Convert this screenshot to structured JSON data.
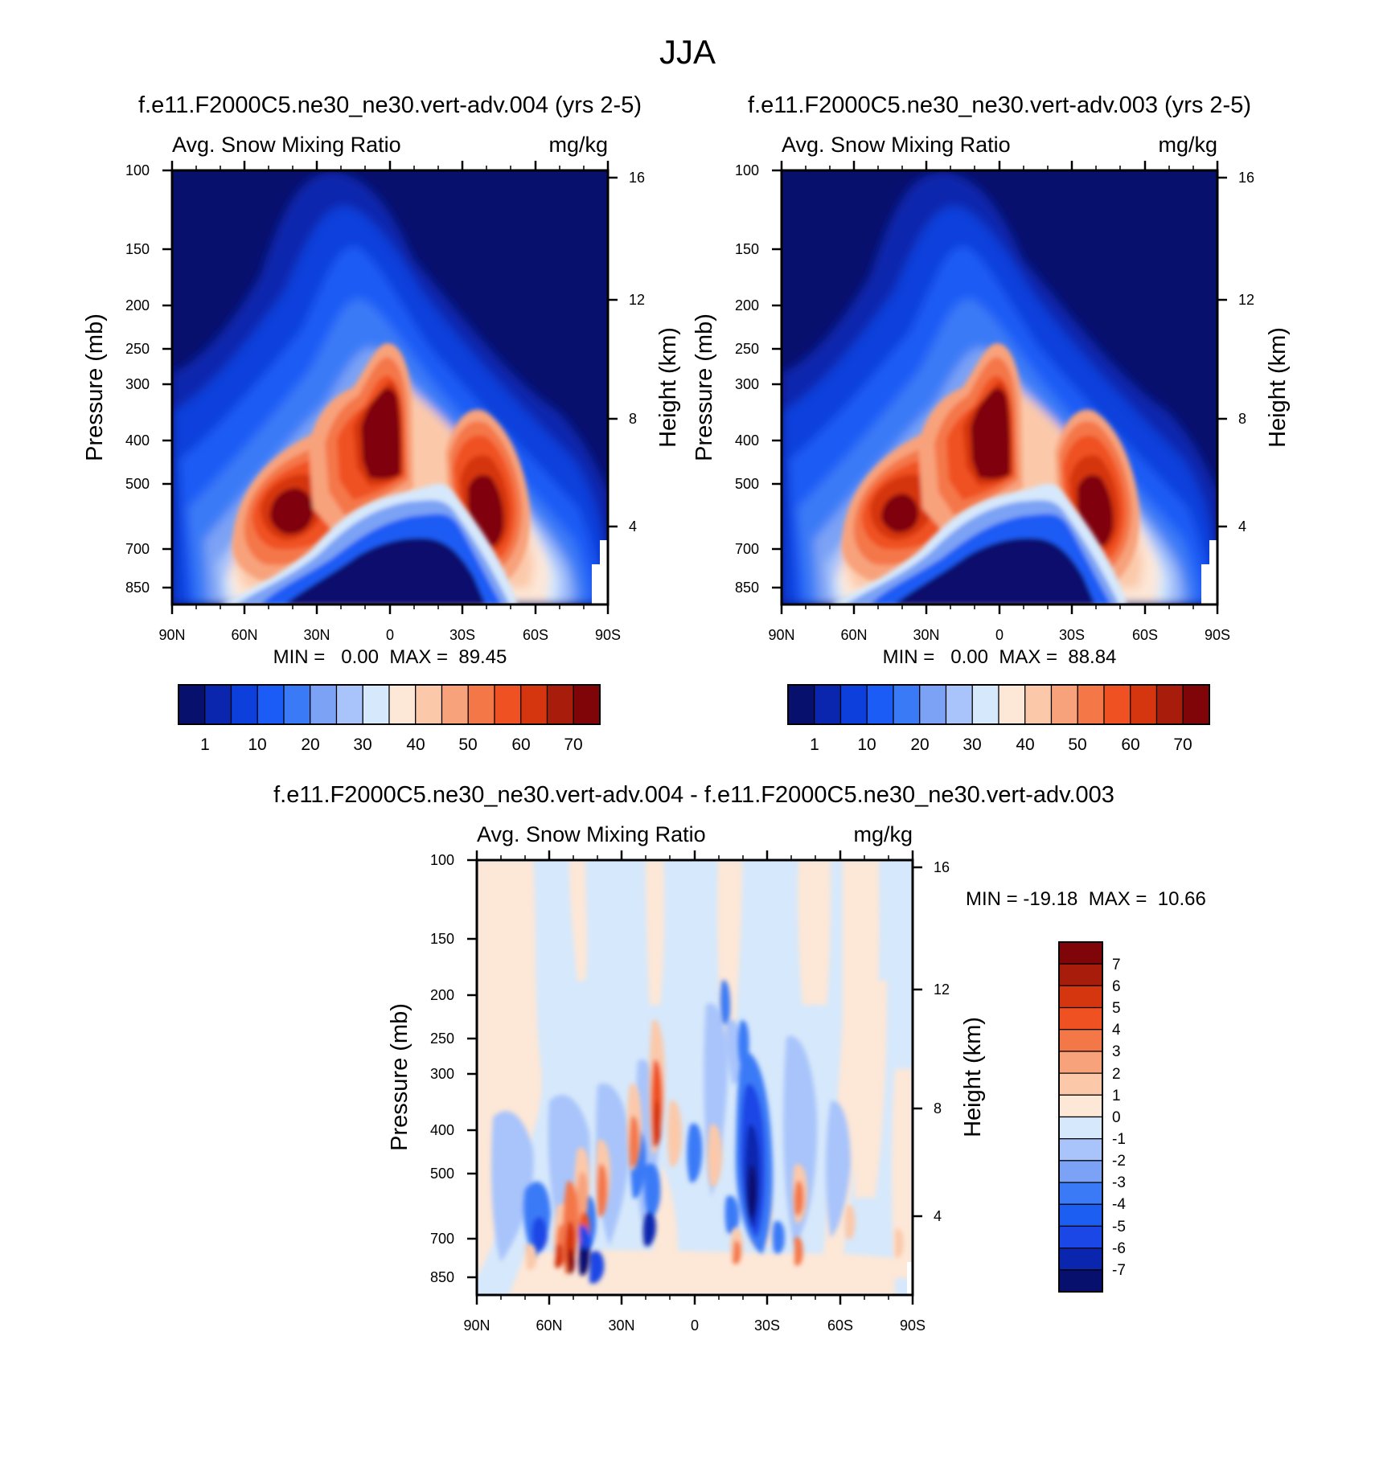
{
  "page": {
    "title": "JJA"
  },
  "colors": {
    "abs_palette": [
      "#08106e",
      "#0a25ae",
      "#0c3fdc",
      "#1a5cf5",
      "#3b7af7",
      "#7ba2f5",
      "#a8c4fb",
      "#d6e8fb",
      "#fde7d7",
      "#fbc9aa",
      "#f8a27c",
      "#f47748",
      "#f05123",
      "#d5350f",
      "#a81c0b",
      "#800509"
    ],
    "diff_palette": [
      "#08106e",
      "#0a25ae",
      "#1a47e6",
      "#1c5ef2",
      "#3b7af7",
      "#7ba2f5",
      "#a8c4fb",
      "#d6e8fb",
      "#fde7d7",
      "#fbc9aa",
      "#f8a27c",
      "#f47748",
      "#f05123",
      "#d5350f",
      "#a81c0b",
      "#800509"
    ]
  },
  "chart_data": [
    {
      "type": "heatmap",
      "title": "f.e11.F2000C5.ne30_ne30.vert-adv.004 (yrs 2-5)",
      "left_label": "Avg. Snow Mixing Ratio",
      "right_label": "mg/kg",
      "ylabel": "Pressure (mb)",
      "y2label": "Height (km)",
      "xticks": [
        "90N",
        "60N",
        "30N",
        "0",
        "30S",
        "60S",
        "90S"
      ],
      "yticks": [
        "100",
        "150",
        "200",
        "250",
        "300",
        "400",
        "500",
        "700",
        "850"
      ],
      "y2ticks": [
        "16",
        "12",
        "8",
        "4"
      ],
      "stats": "MIN =   0.00  MAX =  89.45",
      "colorbar_labels": [
        "1",
        "10",
        "20",
        "30",
        "40",
        "50",
        "60",
        "70"
      ],
      "min": 0.0,
      "max": 89.45
    },
    {
      "type": "heatmap",
      "title": "f.e11.F2000C5.ne30_ne30.vert-adv.003 (yrs 2-5)",
      "left_label": "Avg. Snow Mixing Ratio",
      "right_label": "mg/kg",
      "ylabel": "Pressure (mb)",
      "y2label": "Height (km)",
      "xticks": [
        "90N",
        "60N",
        "30N",
        "0",
        "30S",
        "60S",
        "90S"
      ],
      "yticks": [
        "100",
        "150",
        "200",
        "250",
        "300",
        "400",
        "500",
        "700",
        "850"
      ],
      "y2ticks": [
        "16",
        "12",
        "8",
        "4"
      ],
      "stats": "MIN =   0.00  MAX =  88.84",
      "colorbar_labels": [
        "1",
        "10",
        "20",
        "30",
        "40",
        "50",
        "60",
        "70"
      ],
      "min": 0.0,
      "max": 88.84
    },
    {
      "type": "heatmap",
      "title": "f.e11.F2000C5.ne30_ne30.vert-adv.004 - f.e11.F2000C5.ne30_ne30.vert-adv.003",
      "left_label": "Avg. Snow Mixing Ratio",
      "right_label": "mg/kg",
      "ylabel": "Pressure (mb)",
      "y2label": "Height (km)",
      "xticks": [
        "90N",
        "60N",
        "30N",
        "0",
        "30S",
        "60S",
        "90S"
      ],
      "yticks": [
        "100",
        "150",
        "200",
        "250",
        "300",
        "400",
        "500",
        "700",
        "850"
      ],
      "y2ticks": [
        "16",
        "12",
        "8",
        "4"
      ],
      "stats": "MIN = -19.18  MAX =  10.66",
      "colorbar_labels": [
        "7",
        "6",
        "5",
        "4",
        "3",
        "2",
        "1",
        "0",
        "-1",
        "-2",
        "-3",
        "-4",
        "-5",
        "-6",
        "-7"
      ],
      "min": -19.18,
      "max": 10.66
    }
  ]
}
